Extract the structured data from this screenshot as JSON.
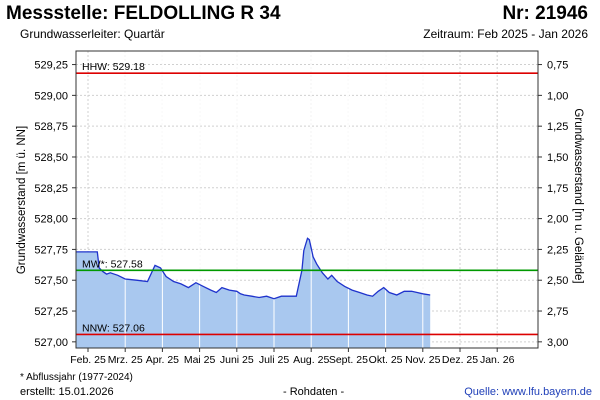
{
  "header": {
    "title": "Messstelle: FELDOLLING R 34",
    "nr": "Nr: 21946",
    "aquifer": "Grundwasserleiter: Quartär",
    "period": "Zeitraum: Feb 2025 - Jan 2026"
  },
  "footer": {
    "footnote": "* Abflussjahr (1977-2024)",
    "created": "erstellt:  15.01.2026",
    "status": "- Rohdaten -",
    "source": "Quelle: www.lfu.bayern.de"
  },
  "colors": {
    "fill": "#a9c8ef",
    "line": "#1f33cc",
    "extreme": "#dd0000",
    "mean": "#009900",
    "grid": "#d0d0d0"
  },
  "chart_data": {
    "type": "area",
    "ylabel": "Grundwasserstand [m ü. NN]",
    "ylabel_right": "Grundwasserstand [m u. Gelände]",
    "ylim": [
      526.95,
      529.3
    ],
    "y_ticks": [
      "529,25",
      "529,00",
      "528,75",
      "528,50",
      "528,25",
      "528,00",
      "527,75",
      "527,50",
      "527,25",
      "527,00"
    ],
    "y_right_ticks": [
      "0,75",
      "1,00",
      "1,25",
      "1,50",
      "1,75",
      "2,00",
      "2,25",
      "2,50",
      "2,75",
      "3,00"
    ],
    "x_ticks": [
      "Feb. 25",
      "Mrz. 25",
      "Apr. 25",
      "Mai 25",
      "Juni 25",
      "Juli 25",
      "Aug. 25",
      "Sept. 25",
      "Okt. 25",
      "Nov. 25",
      "Dez. 25",
      "Jan. 26"
    ],
    "reference_lines": [
      {
        "label": "HHW: 529.18",
        "value": 529.18,
        "kind": "extreme"
      },
      {
        "label": "MW*: 527.58",
        "value": 527.58,
        "kind": "mean"
      },
      {
        "label": "NNW: 527.06",
        "value": 527.06,
        "kind": "extreme"
      }
    ],
    "series": [
      {
        "x": [
          0,
          0.25,
          0.3,
          0.4,
          0.5,
          0.6,
          0.8,
          1.0,
          1.3,
          1.6,
          1.8,
          1.95,
          2.1,
          2.3,
          2.5,
          2.7,
          2.9,
          3.1,
          3.3,
          3.45,
          3.6,
          3.8,
          4.0,
          4.1,
          4.2,
          4.4,
          4.6,
          4.8,
          5.0,
          5.2,
          5.4,
          5.6,
          5.75,
          5.8,
          5.85,
          5.9,
          5.95,
          6.0,
          6.05,
          6.15,
          6.3,
          6.45,
          6.55,
          6.7,
          6.9,
          7.1,
          7.3,
          7.5,
          7.65,
          7.8,
          7.95,
          8.1,
          8.3,
          8.5,
          8.7,
          8.85,
          9.0,
          9.2
        ],
        "values": [
          527.73,
          527.73,
          527.6,
          527.57,
          527.55,
          527.56,
          527.54,
          527.51,
          527.5,
          527.49,
          527.62,
          527.6,
          527.53,
          527.49,
          527.47,
          527.44,
          527.48,
          527.45,
          527.42,
          527.4,
          527.44,
          527.42,
          527.41,
          527.39,
          527.38,
          527.37,
          527.36,
          527.37,
          527.35,
          527.37,
          527.37,
          527.37,
          527.58,
          527.74,
          527.79,
          527.84,
          527.83,
          527.76,
          527.69,
          527.63,
          527.56,
          527.51,
          527.54,
          527.49,
          527.45,
          527.42,
          527.4,
          527.38,
          527.37,
          527.41,
          527.44,
          527.4,
          527.38,
          527.41,
          527.41,
          527.4,
          527.39,
          527.38
        ]
      }
    ]
  }
}
